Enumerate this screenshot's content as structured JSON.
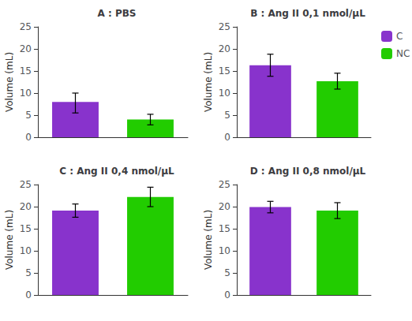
{
  "chart_data": [
    {
      "type": "bar",
      "title": "A : PBS",
      "categories": [
        "C",
        "NC"
      ],
      "values": [
        8.0,
        4.0
      ],
      "error_up": [
        2.0,
        1.2
      ],
      "error_down": [
        2.5,
        1.2
      ],
      "colors": [
        "#8833CC",
        "#22CC00"
      ],
      "ylabel": "Volume (mL)",
      "ylim": [
        0,
        25
      ],
      "yticks": [
        0,
        5,
        10,
        15,
        20,
        25
      ],
      "grid": false,
      "tick_labels": "y"
    },
    {
      "type": "bar",
      "title": "B : Ang II 0,1 nmol/μL",
      "categories": [
        "C",
        "NC"
      ],
      "values": [
        16.3,
        12.7
      ],
      "error_up": [
        2.5,
        1.8
      ],
      "error_down": [
        2.5,
        1.8
      ],
      "colors": [
        "#8833CC",
        "#22CC00"
      ],
      "ylabel": "Volume (mL)",
      "ylim": [
        0,
        25
      ],
      "yticks": [
        0,
        5,
        10,
        15,
        20,
        25
      ],
      "grid": false,
      "tick_labels": "y",
      "legend": "upper right"
    },
    {
      "type": "bar",
      "title": "C : Ang II 0,4 nmol/μL",
      "categories": [
        "C",
        "NC"
      ],
      "values": [
        19.1,
        22.2
      ],
      "error_up": [
        1.5,
        2.2
      ],
      "error_down": [
        1.5,
        2.2
      ],
      "colors": [
        "#8833CC",
        "#22CC00"
      ],
      "ylabel": "Volume (mL)",
      "ylim": [
        0,
        25
      ],
      "yticks": [
        0,
        5,
        10,
        15,
        20,
        25
      ],
      "grid": false,
      "tick_labels": "y"
    },
    {
      "type": "bar",
      "title": "D : Ang II 0,8 nmol/μL",
      "categories": [
        "C",
        "NC"
      ],
      "values": [
        19.9,
        19.1
      ],
      "error_up": [
        1.3,
        1.8
      ],
      "error_down": [
        1.3,
        1.8
      ],
      "colors": [
        "#8833CC",
        "#22CC00"
      ],
      "ylabel": "Volume (mL)",
      "ylim": [
        0,
        25
      ],
      "yticks": [
        0,
        5,
        10,
        15,
        20,
        25
      ],
      "grid": false,
      "tick_labels": "y"
    }
  ]
}
